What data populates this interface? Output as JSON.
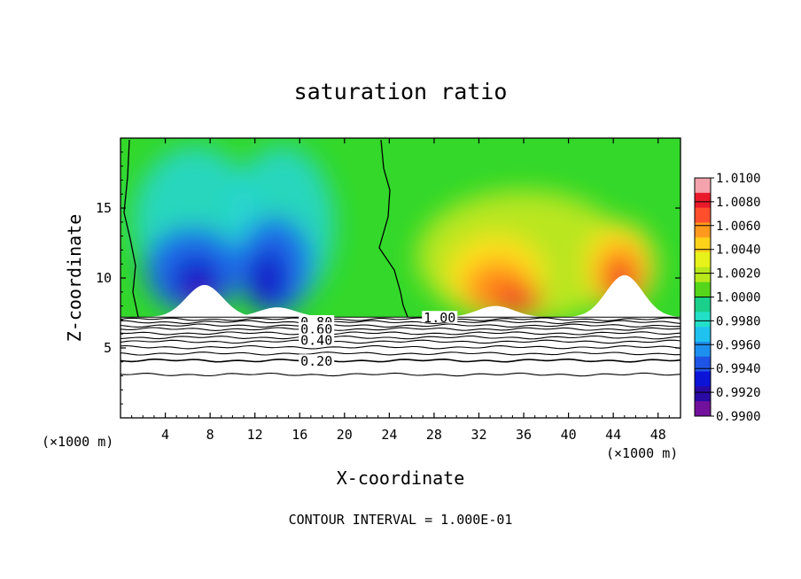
{
  "chart_data": {
    "type": "heatmap",
    "title": "saturation ratio",
    "xlabel": "X-coordinate",
    "ylabel": "Z-coordinate",
    "x_unit_left": "(×1000 m)",
    "x_unit_right": "(×1000 m)",
    "xlim": [
      0,
      50
    ],
    "ylim": [
      0,
      20
    ],
    "x_ticks": [
      4,
      8,
      12,
      16,
      20,
      24,
      28,
      32,
      36,
      40,
      44,
      48
    ],
    "x_tick_labels": [
      "4",
      "8",
      "12",
      "16",
      "20",
      "24",
      "28",
      "32",
      "36",
      "40",
      "44",
      "48"
    ],
    "y_ticks": [
      5,
      10,
      15
    ],
    "y_tick_labels": [
      "5",
      "10",
      "15"
    ],
    "colorbar": {
      "min": 0.99,
      "max": 1.01,
      "tick_values": [
        1.01,
        1.008,
        1.006,
        1.004,
        1.002,
        1.0,
        0.998,
        0.996,
        0.994,
        0.992,
        0.99
      ],
      "tick_labels": [
        "1.0100",
        "1.0080",
        "1.0060",
        "1.0040",
        "1.0020",
        "1.0000",
        "0.9980",
        "0.9960",
        "0.9940",
        "0.9920",
        "0.9900"
      ],
      "colors": [
        "#f4a3ad",
        "#ea1a2b",
        "#ff4f2d",
        "#ff9a1e",
        "#ffd21a",
        "#e6f21a",
        "#b8e81c",
        "#55d61b",
        "#1bd08a",
        "#22e0c8",
        "#1fc2ef",
        "#1d8fee",
        "#1f55e6",
        "#0c14d8",
        "#2a0aa5",
        "#72129c"
      ]
    },
    "surface_top": 7.2,
    "contour_labels": [
      {
        "text": "1.00",
        "x": 28.5,
        "y": 7.2
      },
      {
        "text": "0.80",
        "x": 17.5,
        "y": 6.9
      },
      {
        "text": "0.60",
        "x": 17.5,
        "y": 6.4
      },
      {
        "text": "0.40",
        "x": 17.5,
        "y": 5.6
      },
      {
        "text": "0.20",
        "x": 17.5,
        "y": 4.1
      }
    ],
    "mountain_peaks": [
      {
        "x": 7.5,
        "height": 9.5
      },
      {
        "x": 14.0,
        "height": 7.9
      },
      {
        "x": 33.5,
        "height": 8.0
      },
      {
        "x": 45.0,
        "height": 10.2
      }
    ],
    "contour_interval_text": "CONTOUR INTERVAL = 1.000E-01"
  }
}
